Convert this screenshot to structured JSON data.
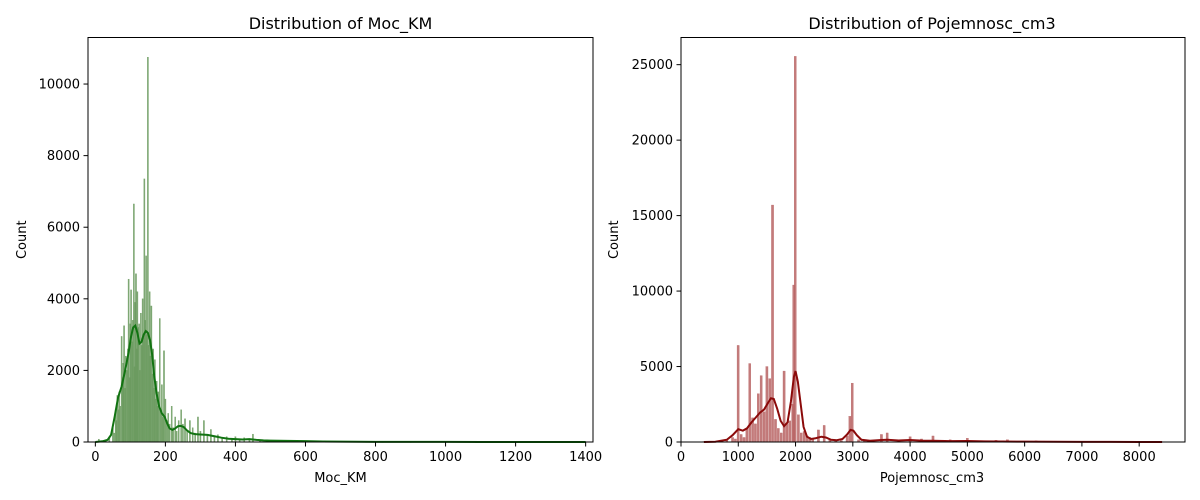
{
  "chart_data": [
    {
      "type": "histogram",
      "title": "Distribution of Moc_KM",
      "xlabel": "Moc_KM",
      "ylabel": "Count",
      "xlim": [
        -21,
        1421
      ],
      "ylim": [
        0,
        11300
      ],
      "xticks": [
        0,
        200,
        400,
        600,
        800,
        1000,
        1200,
        1400
      ],
      "yticks": [
        0,
        2000,
        4000,
        6000,
        8000,
        10000
      ],
      "bar_color": "#6a9a5e",
      "kde_color": "#117311",
      "grid": false,
      "bars": [
        {
          "x": 10,
          "y": 80
        },
        {
          "x": 30,
          "y": 60
        },
        {
          "x": 40,
          "y": 150
        },
        {
          "x": 50,
          "y": 400
        },
        {
          "x": 54,
          "y": 250
        },
        {
          "x": 58,
          "y": 900
        },
        {
          "x": 60,
          "y": 600
        },
        {
          "x": 63,
          "y": 1300
        },
        {
          "x": 66,
          "y": 900
        },
        {
          "x": 68,
          "y": 1400
        },
        {
          "x": 71,
          "y": 1000
        },
        {
          "x": 75,
          "y": 2950
        },
        {
          "x": 78,
          "y": 1800
        },
        {
          "x": 80,
          "y": 2200
        },
        {
          "x": 82,
          "y": 3250
        },
        {
          "x": 85,
          "y": 1500
        },
        {
          "x": 87,
          "y": 2400
        },
        {
          "x": 90,
          "y": 2000
        },
        {
          "x": 93,
          "y": 2600
        },
        {
          "x": 95,
          "y": 4550
        },
        {
          "x": 98,
          "y": 1800
        },
        {
          "x": 100,
          "y": 3300
        },
        {
          "x": 102,
          "y": 4250
        },
        {
          "x": 105,
          "y": 2800
        },
        {
          "x": 107,
          "y": 3400
        },
        {
          "x": 110,
          "y": 6650
        },
        {
          "x": 112,
          "y": 2100
        },
        {
          "x": 114,
          "y": 3900
        },
        {
          "x": 116,
          "y": 4700
        },
        {
          "x": 118,
          "y": 2600
        },
        {
          "x": 120,
          "y": 4200
        },
        {
          "x": 122,
          "y": 3200
        },
        {
          "x": 125,
          "y": 3300
        },
        {
          "x": 127,
          "y": 2000
        },
        {
          "x": 130,
          "y": 3600
        },
        {
          "x": 132,
          "y": 2700
        },
        {
          "x": 135,
          "y": 4000
        },
        {
          "x": 137,
          "y": 2900
        },
        {
          "x": 140,
          "y": 7350
        },
        {
          "x": 142,
          "y": 3400
        },
        {
          "x": 145,
          "y": 5200
        },
        {
          "x": 147,
          "y": 3000
        },
        {
          "x": 150,
          "y": 10750
        },
        {
          "x": 152,
          "y": 2700
        },
        {
          "x": 155,
          "y": 4200
        },
        {
          "x": 157,
          "y": 2400
        },
        {
          "x": 160,
          "y": 3800
        },
        {
          "x": 163,
          "y": 1900
        },
        {
          "x": 165,
          "y": 2600
        },
        {
          "x": 168,
          "y": 1500
        },
        {
          "x": 170,
          "y": 2300
        },
        {
          "x": 173,
          "y": 1200
        },
        {
          "x": 175,
          "y": 1700
        },
        {
          "x": 178,
          "y": 1000
        },
        {
          "x": 180,
          "y": 1400
        },
        {
          "x": 184,
          "y": 3450
        },
        {
          "x": 187,
          "y": 900
        },
        {
          "x": 190,
          "y": 1600
        },
        {
          "x": 193,
          "y": 700
        },
        {
          "x": 196,
          "y": 2550
        },
        {
          "x": 200,
          "y": 1200
        },
        {
          "x": 204,
          "y": 600
        },
        {
          "x": 208,
          "y": 800
        },
        {
          "x": 212,
          "y": 500
        },
        {
          "x": 218,
          "y": 1000
        },
        {
          "x": 222,
          "y": 400
        },
        {
          "x": 228,
          "y": 700
        },
        {
          "x": 232,
          "y": 300
        },
        {
          "x": 238,
          "y": 600
        },
        {
          "x": 245,
          "y": 900
        },
        {
          "x": 250,
          "y": 500
        },
        {
          "x": 256,
          "y": 650
        },
        {
          "x": 262,
          "y": 300
        },
        {
          "x": 270,
          "y": 600
        },
        {
          "x": 278,
          "y": 400
        },
        {
          "x": 285,
          "y": 250
        },
        {
          "x": 293,
          "y": 700
        },
        {
          "x": 300,
          "y": 300
        },
        {
          "x": 310,
          "y": 600
        },
        {
          "x": 320,
          "y": 200
        },
        {
          "x": 330,
          "y": 350
        },
        {
          "x": 340,
          "y": 150
        },
        {
          "x": 350,
          "y": 200
        },
        {
          "x": 362,
          "y": 120
        },
        {
          "x": 375,
          "y": 150
        },
        {
          "x": 390,
          "y": 100
        },
        {
          "x": 400,
          "y": 150
        },
        {
          "x": 412,
          "y": 80
        },
        {
          "x": 425,
          "y": 120
        },
        {
          "x": 440,
          "y": 60
        },
        {
          "x": 450,
          "y": 220
        },
        {
          "x": 470,
          "y": 60
        },
        {
          "x": 490,
          "y": 40
        },
        {
          "x": 510,
          "y": 50
        },
        {
          "x": 530,
          "y": 30
        },
        {
          "x": 560,
          "y": 30
        },
        {
          "x": 590,
          "y": 20
        },
        {
          "x": 610,
          "y": 30
        },
        {
          "x": 650,
          "y": 20
        },
        {
          "x": 700,
          "y": 10
        },
        {
          "x": 760,
          "y": 8
        },
        {
          "x": 820,
          "y": 5
        },
        {
          "x": 900,
          "y": 4
        },
        {
          "x": 1000,
          "y": 3
        },
        {
          "x": 1100,
          "y": 3
        },
        {
          "x": 1200,
          "y": 2
        },
        {
          "x": 1300,
          "y": 2
        },
        {
          "x": 1395,
          "y": 10
        }
      ],
      "kde": [
        [
          0,
          0
        ],
        [
          20,
          20
        ],
        [
          35,
          60
        ],
        [
          45,
          200
        ],
        [
          55,
          700
        ],
        [
          65,
          1250
        ],
        [
          75,
          1550
        ],
        [
          85,
          2000
        ],
        [
          95,
          2500
        ],
        [
          102,
          2950
        ],
        [
          108,
          3200
        ],
        [
          114,
          3250
        ],
        [
          120,
          3050
        ],
        [
          126,
          2750
        ],
        [
          132,
          2800
        ],
        [
          138,
          3000
        ],
        [
          144,
          3100
        ],
        [
          150,
          3050
        ],
        [
          156,
          2850
        ],
        [
          162,
          2450
        ],
        [
          168,
          1850
        ],
        [
          175,
          1350
        ],
        [
          182,
          1000
        ],
        [
          190,
          800
        ],
        [
          198,
          700
        ],
        [
          205,
          520
        ],
        [
          212,
          380
        ],
        [
          220,
          340
        ],
        [
          228,
          380
        ],
        [
          236,
          440
        ],
        [
          244,
          450
        ],
        [
          252,
          420
        ],
        [
          262,
          320
        ],
        [
          272,
          250
        ],
        [
          285,
          220
        ],
        [
          300,
          210
        ],
        [
          320,
          200
        ],
        [
          340,
          160
        ],
        [
          360,
          120
        ],
        [
          380,
          90
        ],
        [
          400,
          80
        ],
        [
          420,
          70
        ],
        [
          440,
          80
        ],
        [
          460,
          60
        ],
        [
          480,
          45
        ],
        [
          500,
          40
        ],
        [
          550,
          30
        ],
        [
          600,
          25
        ],
        [
          650,
          15
        ],
        [
          700,
          10
        ],
        [
          800,
          5
        ],
        [
          900,
          3
        ],
        [
          1000,
          2
        ],
        [
          1100,
          1
        ],
        [
          1200,
          1
        ],
        [
          1300,
          1
        ],
        [
          1400,
          0
        ]
      ]
    },
    {
      "type": "histogram",
      "title": "Distribution of Pojemnosc_cm3",
      "xlabel": "Pojemnosc_cm3",
      "ylabel": "Count",
      "xlim": [
        0,
        8800
      ],
      "ylim": [
        0,
        26800
      ],
      "xticks": [
        0,
        1000,
        2000,
        3000,
        4000,
        5000,
        6000,
        7000,
        8000
      ],
      "yticks": [
        0,
        5000,
        10000,
        15000,
        20000,
        25000
      ],
      "bar_color": "#b86464",
      "kde_color": "#8b0a0a",
      "grid": false,
      "bars": [
        {
          "x": 400,
          "y": 30
        },
        {
          "x": 600,
          "y": 50
        },
        {
          "x": 800,
          "y": 150
        },
        {
          "x": 900,
          "y": 300
        },
        {
          "x": 950,
          "y": 200
        },
        {
          "x": 998,
          "y": 6400
        },
        {
          "x": 1050,
          "y": 500
        },
        {
          "x": 1100,
          "y": 300
        },
        {
          "x": 1150,
          "y": 900
        },
        {
          "x": 1200,
          "y": 5200
        },
        {
          "x": 1250,
          "y": 1600
        },
        {
          "x": 1300,
          "y": 1200
        },
        {
          "x": 1350,
          "y": 3200
        },
        {
          "x": 1400,
          "y": 4400
        },
        {
          "x": 1450,
          "y": 2000
        },
        {
          "x": 1500,
          "y": 5000
        },
        {
          "x": 1550,
          "y": 4200
        },
        {
          "x": 1598,
          "y": 15700
        },
        {
          "x": 1650,
          "y": 1500
        },
        {
          "x": 1700,
          "y": 900
        },
        {
          "x": 1750,
          "y": 600
        },
        {
          "x": 1800,
          "y": 4700
        },
        {
          "x": 1850,
          "y": 1200
        },
        {
          "x": 1900,
          "y": 1400
        },
        {
          "x": 1950,
          "y": 2500
        },
        {
          "x": 1968,
          "y": 10400
        },
        {
          "x": 1995,
          "y": 25550
        },
        {
          "x": 2050,
          "y": 1800
        },
        {
          "x": 2100,
          "y": 600
        },
        {
          "x": 2150,
          "y": 700
        },
        {
          "x": 2200,
          "y": 400
        },
        {
          "x": 2250,
          "y": 300
        },
        {
          "x": 2300,
          "y": 200
        },
        {
          "x": 2400,
          "y": 800
        },
        {
          "x": 2500,
          "y": 1100
        },
        {
          "x": 2600,
          "y": 200
        },
        {
          "x": 2700,
          "y": 150
        },
        {
          "x": 2800,
          "y": 100
        },
        {
          "x": 2900,
          "y": 400
        },
        {
          "x": 2950,
          "y": 1700
        },
        {
          "x": 2990,
          "y": 3900
        },
        {
          "x": 3100,
          "y": 150
        },
        {
          "x": 3200,
          "y": 120
        },
        {
          "x": 3300,
          "y": 80
        },
        {
          "x": 3500,
          "y": 500
        },
        {
          "x": 3600,
          "y": 600
        },
        {
          "x": 3800,
          "y": 100
        },
        {
          "x": 4000,
          "y": 350
        },
        {
          "x": 4200,
          "y": 200
        },
        {
          "x": 4400,
          "y": 400
        },
        {
          "x": 4700,
          "y": 150
        },
        {
          "x": 5000,
          "y": 250
        },
        {
          "x": 5500,
          "y": 120
        },
        {
          "x": 5700,
          "y": 150
        },
        {
          "x": 6200,
          "y": 80
        },
        {
          "x": 6800,
          "y": 40
        },
        {
          "x": 7500,
          "y": 20
        },
        {
          "x": 8300,
          "y": 10
        }
      ],
      "kde": [
        [
          400,
          0
        ],
        [
          600,
          20
        ],
        [
          800,
          150
        ],
        [
          900,
          450
        ],
        [
          1000,
          850
        ],
        [
          1080,
          750
        ],
        [
          1150,
          900
        ],
        [
          1230,
          1300
        ],
        [
          1300,
          1600
        ],
        [
          1380,
          1950
        ],
        [
          1450,
          2150
        ],
        [
          1520,
          2600
        ],
        [
          1570,
          2900
        ],
        [
          1620,
          2850
        ],
        [
          1680,
          2200
        ],
        [
          1740,
          1400
        ],
        [
          1800,
          1050
        ],
        [
          1860,
          1300
        ],
        [
          1920,
          2700
        ],
        [
          1970,
          4300
        ],
        [
          2000,
          4700
        ],
        [
          2040,
          4000
        ],
        [
          2090,
          2500
        ],
        [
          2140,
          1000
        ],
        [
          2200,
          350
        ],
        [
          2270,
          200
        ],
        [
          2350,
          250
        ],
        [
          2450,
          350
        ],
        [
          2530,
          300
        ],
        [
          2620,
          150
        ],
        [
          2720,
          120
        ],
        [
          2820,
          200
        ],
        [
          2900,
          500
        ],
        [
          2960,
          800
        ],
        [
          3010,
          750
        ],
        [
          3070,
          450
        ],
        [
          3150,
          150
        ],
        [
          3300,
          80
        ],
        [
          3500,
          130
        ],
        [
          3600,
          150
        ],
        [
          3800,
          100
        ],
        [
          4000,
          130
        ],
        [
          4200,
          90
        ],
        [
          4400,
          80
        ],
        [
          4700,
          60
        ],
        [
          5000,
          70
        ],
        [
          5300,
          40
        ],
        [
          5600,
          30
        ],
        [
          6000,
          25
        ],
        [
          6500,
          15
        ],
        [
          7000,
          10
        ],
        [
          7500,
          5
        ],
        [
          8000,
          3
        ],
        [
          8400,
          0
        ]
      ]
    }
  ]
}
